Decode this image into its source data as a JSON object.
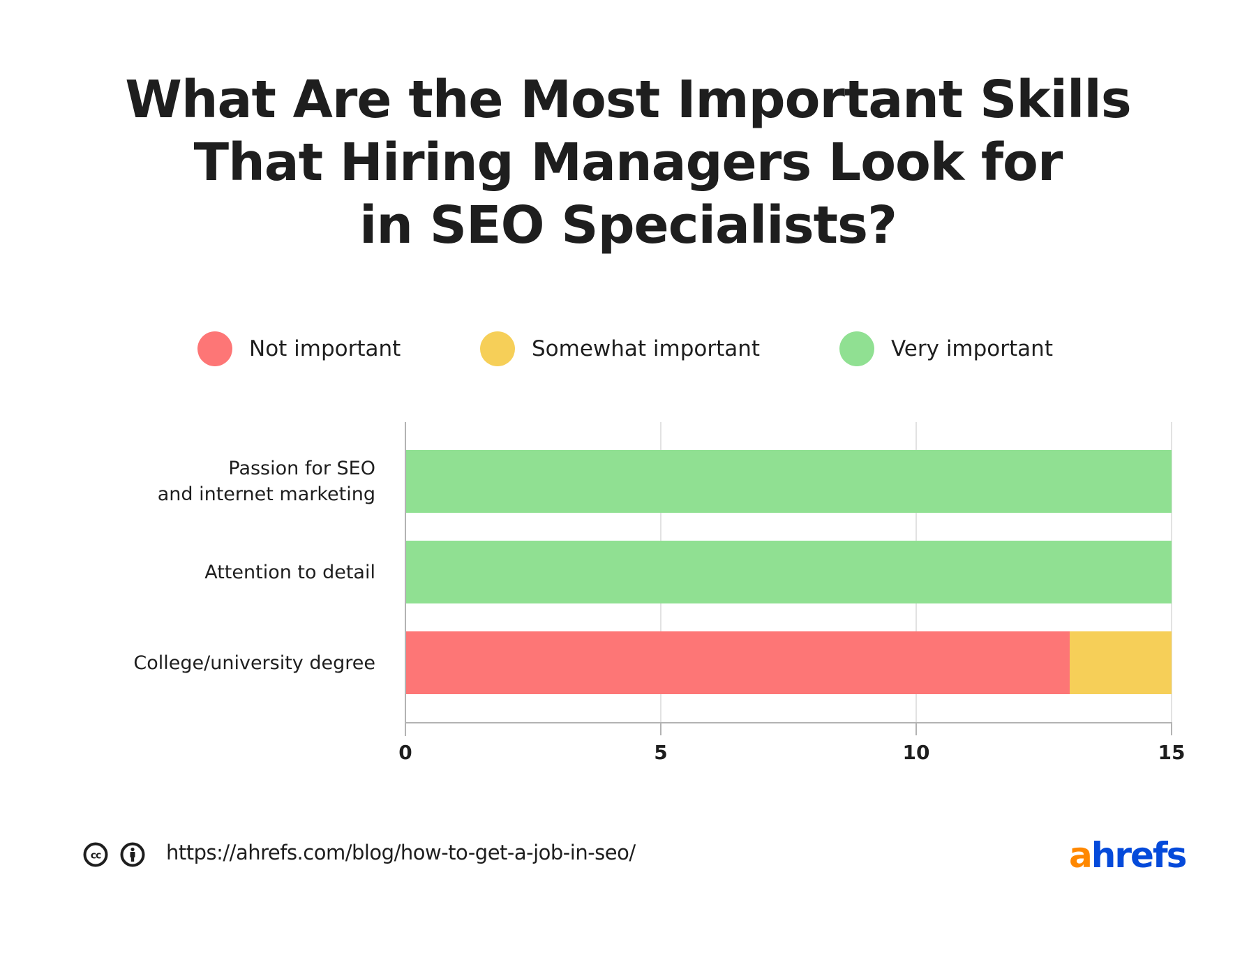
{
  "title": {
    "lines": [
      "What Are the Most Important Skills",
      "That Hiring Managers Look for",
      "in SEO Specialists?"
    ]
  },
  "legend": [
    {
      "label": "Not important",
      "color": "#fd7676"
    },
    {
      "label": "Somewhat important",
      "color": "#f6cf58"
    },
    {
      "label": "Very important",
      "color": "#90e092"
    }
  ],
  "chart_data": {
    "type": "bar",
    "orientation": "horizontal",
    "stacked": true,
    "title": "What Are the Most Important Skills That Hiring Managers Look for in SEO Specialists?",
    "categories": [
      "Passion for SEO and internet marketing",
      "Attention to detail",
      "College/university degree"
    ],
    "category_label_lines": [
      [
        "Passion for SEO",
        "and internet marketing"
      ],
      [
        "Attention to detail"
      ],
      [
        "College/university degree"
      ]
    ],
    "series": [
      {
        "name": "Not important",
        "color": "#fd7676",
        "values": [
          0,
          0,
          13
        ]
      },
      {
        "name": "Somewhat important",
        "color": "#f6cf58",
        "values": [
          0,
          0,
          2
        ]
      },
      {
        "name": "Very important",
        "color": "#90e092",
        "values": [
          15,
          15,
          0
        ]
      }
    ],
    "xlabel": "",
    "ylabel": "",
    "xlim": [
      0,
      15
    ],
    "x_ticks": [
      "0",
      "5",
      "10",
      "15"
    ],
    "grid": true,
    "legend_position": "top"
  },
  "footer": {
    "license_icons": [
      "creative-commons-icon",
      "attribution-icon"
    ],
    "url": "https://ahrefs.com/blog/how-to-get-a-job-in-seo/"
  },
  "logo": {
    "accent": "a",
    "rest": "hrefs",
    "accent_color": "#ff8800",
    "rest_color": "#054ada"
  }
}
